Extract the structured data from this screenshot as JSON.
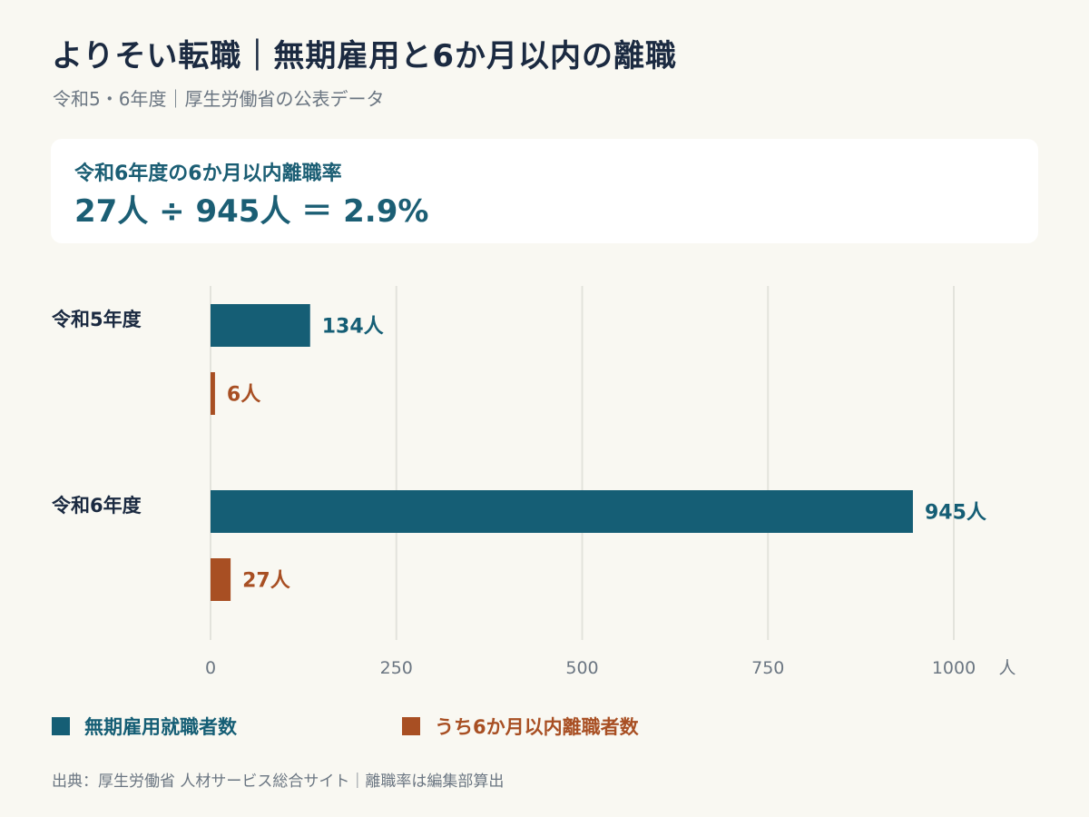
{
  "header": {
    "title": "よりそい転職｜無期雇用と6か月以内の離職",
    "subtitle": "令和5・6年度｜厚生労働省の公表データ"
  },
  "summary": {
    "label": "令和6年度の6か月以内離職率",
    "formula": "27人 ÷ 945人 ＝ 2.9%"
  },
  "colors": {
    "series1": "#155e75",
    "series2": "#a84f23"
  },
  "chart_data": {
    "type": "bar",
    "orientation": "horizontal",
    "categories": [
      "令和5年度",
      "令和6年度"
    ],
    "series": [
      {
        "name": "無期雇用就職者数",
        "values": [
          134,
          945
        ],
        "labels": [
          "134人",
          "945人"
        ]
      },
      {
        "name": "うち6か月以内離職者数",
        "values": [
          6,
          27
        ],
        "labels": [
          "6人",
          "27人"
        ]
      }
    ],
    "xlim": [
      0,
      1000
    ],
    "xticks": [
      0,
      250,
      500,
      750,
      1000
    ],
    "xtick_labels": [
      "0",
      "250",
      "500",
      "750",
      "1000"
    ],
    "unit_label": "人",
    "grid": true,
    "legend_position": "bottom-left"
  },
  "legend": {
    "item1": "無期雇用就職者数",
    "item2": "うち6か月以内離職者数"
  },
  "footer": {
    "source": "出典：厚生労働省 人材サービス総合サイト｜離職率は編集部算出"
  }
}
